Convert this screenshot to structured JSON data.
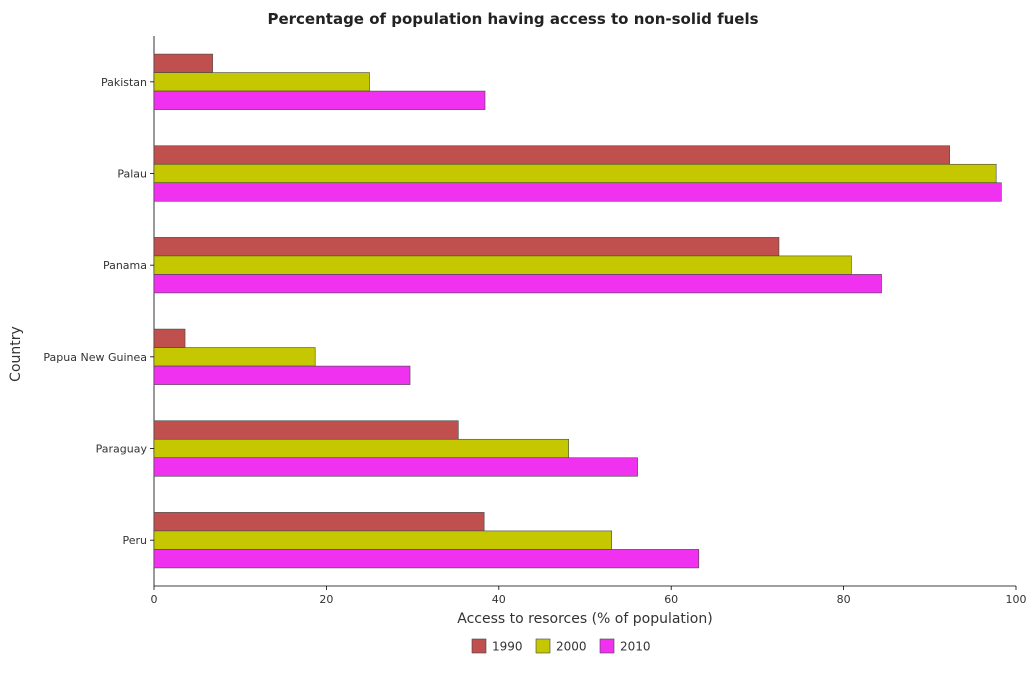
{
  "chart_data": {
    "type": "bar",
    "orientation": "horizontal",
    "title": "Percentage of population having access to non-solid fuels",
    "xlabel": "Access to resorces (% of population)",
    "ylabel": "Country",
    "categories": [
      "Pakistan",
      "Palau",
      "Panama",
      "Papua New Guinea",
      "Paraguay",
      "Peru"
    ],
    "series": [
      {
        "name": "1990",
        "color": "#c0504d",
        "values": [
          6.8,
          92.3,
          72.5,
          3.6,
          35.3,
          38.3
        ]
      },
      {
        "name": "2000",
        "color": "#c5c800",
        "values": [
          25.0,
          97.7,
          80.9,
          18.7,
          48.1,
          53.1
        ]
      },
      {
        "name": "2010",
        "color": "#f032f0",
        "values": [
          38.4,
          98.3,
          84.4,
          29.7,
          56.1,
          63.2
        ]
      }
    ],
    "xlim": [
      0,
      100
    ],
    "xticks": [
      0,
      20,
      40,
      60,
      80,
      100
    ],
    "grid": false,
    "legend": "bottom-center"
  }
}
